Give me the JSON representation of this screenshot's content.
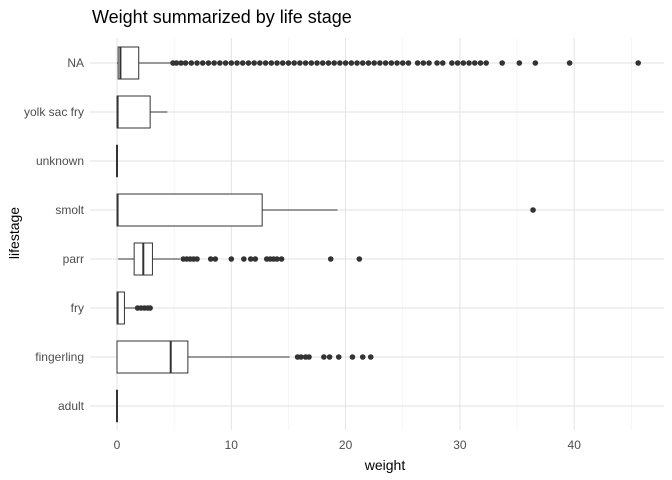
{
  "chart_data": {
    "type": "boxplot",
    "orientation": "horizontal",
    "title": "Weight summarized by life stage",
    "xlabel": "weight",
    "ylabel": "lifestage",
    "xlim": [
      -1.2,
      46.5
    ],
    "x_ticks": [
      0,
      10,
      20,
      30,
      40
    ],
    "grid": true,
    "colors": {
      "box_line": "#333333",
      "outlier": "#333333",
      "grid_major": "#e0e0e0",
      "grid_minor": "#f0f0f0"
    },
    "categories": [
      "NA",
      "yolk sac fry",
      "unknown",
      "smolt",
      "parr",
      "fry",
      "fingerling",
      "adult"
    ],
    "boxes": [
      {
        "category": "NA",
        "min": 0,
        "q1": 0.1,
        "median": 0.3,
        "q3": 1.9,
        "max": 4.8,
        "outliers": [
          4.9,
          5.2,
          5.6,
          6,
          6.5,
          7,
          7.5,
          8,
          8.5,
          9,
          9.5,
          10,
          10.5,
          11,
          11.5,
          12,
          12.5,
          13,
          13.5,
          14,
          14.5,
          15,
          15.5,
          16,
          16.5,
          17,
          17.5,
          18,
          18.5,
          19,
          19.5,
          20,
          20.5,
          21,
          21.5,
          22,
          22.5,
          23,
          23.5,
          24,
          24.5,
          25,
          25.5,
          26.3,
          26.8,
          27.3,
          28,
          28.5,
          29.3,
          29.8,
          30.3,
          30.8,
          31.3,
          31.8,
          32.3,
          33.7,
          35.2,
          36.6,
          39.6,
          45.6
        ]
      },
      {
        "category": "yolk sac fry",
        "min": 0,
        "q1": 0,
        "median": 0.05,
        "q3": 2.9,
        "max": 4.4,
        "outliers": []
      },
      {
        "category": "unknown",
        "min": 0,
        "q1": 0,
        "median": 0,
        "q3": 0,
        "max": 0,
        "outliers": []
      },
      {
        "category": "smolt",
        "min": 0,
        "q1": 0,
        "median": 0.05,
        "q3": 12.7,
        "max": 19.3,
        "outliers": [
          36.4
        ]
      },
      {
        "category": "parr",
        "min": 0.1,
        "q1": 1.5,
        "median": 2.3,
        "q3": 3.1,
        "max": 5.5,
        "outliers": [
          5.8,
          6.1,
          6.4,
          6.7,
          7.0,
          8.2,
          8.6,
          10.0,
          11.1,
          11.7,
          12.1,
          13.1,
          13.4,
          13.7,
          14.0,
          14.4,
          18.7,
          21.2
        ]
      },
      {
        "category": "fry",
        "min": 0,
        "q1": 0,
        "median": 0.05,
        "q3": 0.65,
        "max": 1.6,
        "outliers": [
          1.8,
          2.1,
          2.4,
          2.7,
          2.9
        ]
      },
      {
        "category": "fingerling",
        "min": 0,
        "q1": 0,
        "median": 4.7,
        "q3": 6.2,
        "max": 15.1,
        "outliers": [
          15.8,
          16.1,
          16.5,
          16.8,
          18.1,
          18.6,
          19.4,
          20.6,
          21.5,
          22.2
        ]
      },
      {
        "category": "adult",
        "min": 0,
        "q1": 0,
        "median": 0,
        "q3": 0,
        "max": 0,
        "outliers": []
      }
    ]
  }
}
